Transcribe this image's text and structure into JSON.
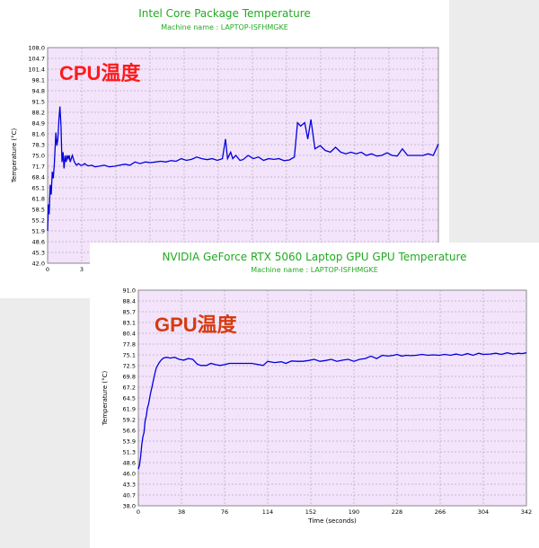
{
  "cpu": {
    "title": "Intel Core Package Temperature",
    "subtitle": "Machine name : LAPTOP-ISFHMGKE",
    "overlay_label": "CPU温度",
    "overlay_color": "#ff1a1a",
    "ylabel": "Temperature (°C)",
    "y_ticks": [
      "108.0",
      "104.7",
      "101.4",
      "98.1",
      "94.8",
      "91.5",
      "88.2",
      "84.9",
      "81.6",
      "78.3",
      "75.0",
      "71.7",
      "68.4",
      "65.1",
      "61.8",
      "58.5",
      "55.2",
      "51.9",
      "48.6",
      "45.3",
      "42.0"
    ],
    "x_ticks_visible": [
      "0",
      "3"
    ],
    "line_color": "#0000dd",
    "plot_bg": "#f3e3fb",
    "grid_color": "#999999"
  },
  "gpu": {
    "title": "NVIDIA GeForce RTX 5060 Laptop GPU GPU Temperature",
    "subtitle": "Machine name : LAPTOP-ISFHMGKE",
    "overlay_label": "GPU温度",
    "overlay_color": "#d63b10",
    "ylabel": "Temperature (°C)",
    "xlabel": "Time (seconds)",
    "y_ticks": [
      "91.0",
      "88.4",
      "85.7",
      "83.1",
      "80.4",
      "77.8",
      "75.1",
      "72.5",
      "69.8",
      "67.2",
      "64.5",
      "61.9",
      "59.2",
      "56.6",
      "53.9",
      "51.3",
      "48.6",
      "46.0",
      "43.3",
      "40.7",
      "38.0"
    ],
    "x_ticks": [
      "0",
      "38",
      "76",
      "114",
      "152",
      "190",
      "228",
      "266",
      "304",
      "342"
    ],
    "line_color": "#0000dd",
    "plot_bg": "#f3e3fb",
    "grid_color": "#999999"
  },
  "chart_data": [
    {
      "type": "line",
      "title": "Intel Core Package Temperature",
      "subtitle": "Machine name : LAPTOP-ISFHMGKE",
      "ylabel": "Temperature (°C)",
      "ylim": [
        42.0,
        108.0
      ],
      "xlim": [
        0,
        38
      ],
      "grid": true,
      "series": [
        {
          "x": [
            0,
            0.08,
            0.15,
            0.25,
            0.35,
            0.45,
            0.55,
            0.65,
            0.8,
            0.9,
            1.0,
            1.1,
            1.2,
            1.3,
            1.4,
            1.5,
            1.6,
            1.7,
            1.8,
            1.9,
            2.0,
            2.1,
            2.2,
            2.3,
            2.4,
            2.5,
            2.6,
            2.8,
            3.0,
            3.2,
            3.4,
            3.6,
            3.8,
            4,
            4.3,
            4.6,
            5,
            5.5,
            6,
            6.5,
            7,
            7.5,
            8,
            8.5,
            9,
            9.5,
            10,
            10.5,
            11,
            11.5,
            12,
            12.5,
            13,
            13.5,
            14,
            14.5,
            15,
            15.5,
            16,
            16.5,
            17,
            17.3,
            17.5,
            17.8,
            18,
            18.3,
            18.7,
            19,
            19.5,
            20,
            20.5,
            21,
            21.5,
            22,
            22.5,
            23,
            23.5,
            24,
            24.3,
            24.6,
            25,
            25.3,
            25.6,
            26,
            26.5,
            27,
            27.5,
            28,
            28.5,
            29,
            29.5,
            30,
            30.5,
            31,
            31.5,
            32,
            32.5,
            33,
            33.5,
            34,
            34.5,
            35,
            35.5,
            36,
            36.5,
            37,
            37.5,
            38
          ],
          "y": [
            51.9,
            60,
            57,
            66,
            63,
            70,
            68,
            72,
            82,
            78,
            80,
            86,
            90,
            84,
            73,
            76,
            71,
            75,
            73,
            75,
            74,
            75,
            73,
            74,
            75,
            74,
            73,
            72,
            72.5,
            72,
            72,
            72.5,
            72,
            71.8,
            72,
            71.5,
            71.7,
            72,
            71.5,
            71.7,
            72,
            72.3,
            72,
            73,
            72.5,
            73,
            72.8,
            73,
            73.2,
            73,
            73.4,
            73.2,
            74,
            73.5,
            73.8,
            74.5,
            74,
            73.7,
            74,
            73.5,
            74,
            80,
            74,
            76,
            74,
            75,
            73.5,
            73.7,
            75,
            74,
            74.5,
            73.5,
            74,
            73.8,
            74,
            73.4,
            73.6,
            74.5,
            85,
            84,
            85,
            80,
            86,
            77,
            78,
            76.5,
            76,
            77.5,
            76,
            75.5,
            76,
            75.5,
            76,
            75,
            75.5,
            74.8,
            75,
            75.8,
            75,
            74.8,
            77,
            75,
            75,
            75,
            75,
            75.5,
            75,
            78.5
          ]
        }
      ]
    },
    {
      "type": "line",
      "title": "NVIDIA GeForce RTX 5060 Laptop GPU GPU Temperature",
      "subtitle": "Machine name : LAPTOP-ISFHMGKE",
      "xlabel": "Time (seconds)",
      "ylabel": "Temperature (°C)",
      "ylim": [
        38.0,
        91.0
      ],
      "xlim": [
        0,
        342
      ],
      "grid": true,
      "series": [
        {
          "x": [
            0,
            1,
            2,
            3,
            4,
            5,
            6,
            7,
            8,
            9,
            10,
            11,
            12,
            13,
            14,
            15,
            16,
            17,
            18,
            20,
            22,
            25,
            28,
            32,
            36,
            40,
            44,
            48,
            52,
            55,
            60,
            64,
            68,
            72,
            76,
            80,
            90,
            100,
            110,
            114,
            120,
            126,
            130,
            135,
            140,
            145,
            150,
            155,
            160,
            165,
            170,
            175,
            180,
            185,
            190,
            195,
            200,
            205,
            210,
            215,
            220,
            225,
            228,
            232,
            236,
            240,
            245,
            250,
            255,
            260,
            265,
            270,
            275,
            280,
            285,
            290,
            295,
            300,
            304,
            310,
            315,
            320,
            325,
            330,
            335,
            338,
            342
          ],
          "y": [
            47,
            48,
            50,
            53,
            55,
            56,
            59,
            60,
            62,
            63,
            64.5,
            66,
            67.2,
            68.5,
            69.8,
            71,
            72,
            72.5,
            73,
            73.8,
            74.3,
            74.5,
            74.3,
            74.5,
            74,
            73.8,
            74.2,
            74,
            72.8,
            72.5,
            72.5,
            73,
            72.7,
            72.5,
            72.7,
            73,
            73,
            73,
            72.5,
            73.5,
            73.2,
            73.4,
            73,
            73.6,
            73.5,
            73.5,
            73.7,
            74,
            73.5,
            73.7,
            74,
            73.5,
            73.8,
            74,
            73.5,
            74,
            74.2,
            74.8,
            74.2,
            75,
            74.8,
            75,
            75.2,
            74.8,
            75,
            74.9,
            75,
            75.2,
            75,
            75.1,
            75,
            75.2,
            75,
            75.3,
            75,
            75.4,
            75,
            75.5,
            75.2,
            75.3,
            75.5,
            75.2,
            75.6,
            75.3,
            75.5,
            75.4,
            75.6
          ]
        }
      ]
    }
  ]
}
